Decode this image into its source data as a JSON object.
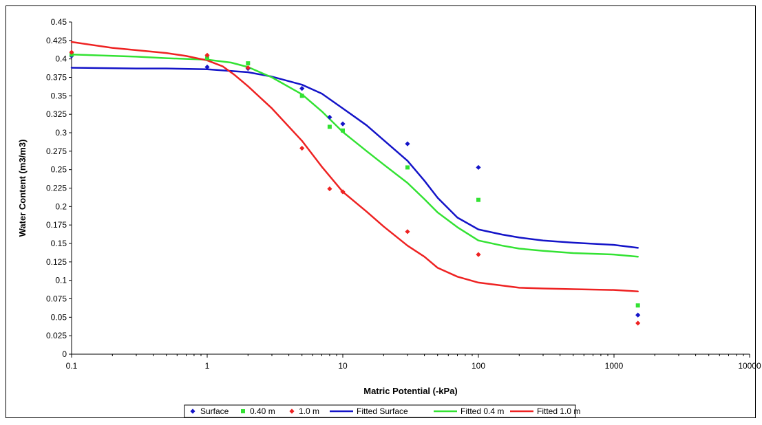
{
  "chart_data": {
    "type": "scatter",
    "title": "",
    "xlabel": "Matric Potential (-kPa)",
    "ylabel": "Water Content (m3/m3)",
    "xscale": "log",
    "xlim": [
      0.1,
      10000
    ],
    "ylim": [
      0,
      0.45
    ],
    "x_ticks": [
      0.1,
      1,
      10,
      100,
      1000,
      10000
    ],
    "x_tick_labels": [
      "0.1",
      "1",
      "10",
      "100",
      "1000",
      "10000"
    ],
    "y_ticks": [
      0,
      0.025,
      0.05,
      0.075,
      0.1,
      0.125,
      0.15,
      0.175,
      0.2,
      0.225,
      0.25,
      0.275,
      0.3,
      0.325,
      0.35,
      0.375,
      0.4,
      0.425,
      0.45
    ],
    "y_tick_labels": [
      "0",
      "0.025",
      "0.05",
      "0.075",
      "0.1",
      "0.125",
      "0.15",
      "0.175",
      "0.2",
      "0.225",
      "0.25",
      "0.275",
      "0.3",
      "0.325",
      "0.35",
      "0.375",
      "0.4",
      "0.425",
      "0.45"
    ],
    "grid": false,
    "legend_position": "bottom",
    "series": [
      {
        "name": "Surface",
        "kind": "points",
        "marker": "diamond",
        "color": "#1414c8",
        "x": [
          0.1,
          1,
          2,
          5,
          8,
          10,
          30,
          100,
          1500
        ],
        "y": [
          0.404,
          0.389,
          0.387,
          0.36,
          0.321,
          0.312,
          0.285,
          0.253,
          0.053
        ]
      },
      {
        "name": "0.40 m",
        "kind": "points",
        "marker": "square",
        "color": "#33e233",
        "x": [
          0.1,
          1,
          2,
          5,
          8,
          10,
          30,
          100,
          1500
        ],
        "y": [
          0.406,
          0.401,
          0.394,
          0.35,
          0.308,
          0.303,
          0.253,
          0.209,
          0.066
        ]
      },
      {
        "name": "1.0 m",
        "kind": "points",
        "marker": "diamond",
        "color": "#ee2222",
        "x": [
          0.1,
          1,
          2,
          5,
          8,
          10,
          30,
          100,
          1500
        ],
        "y": [
          0.409,
          0.405,
          0.388,
          0.279,
          0.224,
          0.22,
          0.166,
          0.135,
          0.042
        ]
      },
      {
        "name": "Fitted Surface",
        "kind": "line",
        "color": "#1414c8",
        "x": [
          0.1,
          0.3,
          0.5,
          1,
          2,
          3,
          5,
          7,
          10,
          15,
          20,
          30,
          40,
          50,
          70,
          100,
          150,
          200,
          300,
          500,
          1000,
          1500
        ],
        "y": [
          0.388,
          0.387,
          0.387,
          0.386,
          0.382,
          0.376,
          0.365,
          0.353,
          0.333,
          0.31,
          0.29,
          0.262,
          0.235,
          0.212,
          0.185,
          0.169,
          0.162,
          0.158,
          0.154,
          0.151,
          0.148,
          0.144
        ]
      },
      {
        "name": "Fitted 0.4 m",
        "kind": "line",
        "color": "#33e233",
        "x": [
          0.1,
          0.3,
          0.5,
          1,
          1.5,
          2,
          3,
          5,
          7,
          10,
          15,
          20,
          30,
          40,
          50,
          70,
          100,
          150,
          200,
          300,
          500,
          1000,
          1500
        ],
        "y": [
          0.406,
          0.403,
          0.401,
          0.399,
          0.395,
          0.389,
          0.375,
          0.352,
          0.329,
          0.301,
          0.275,
          0.257,
          0.232,
          0.21,
          0.192,
          0.172,
          0.154,
          0.147,
          0.143,
          0.14,
          0.137,
          0.135,
          0.132
        ]
      },
      {
        "name": "Fitted 1.0 m",
        "kind": "line",
        "color": "#ee2222",
        "x": [
          0.1,
          0.2,
          0.5,
          0.7,
          1,
          1.3,
          1.6,
          2,
          3,
          5,
          7,
          10,
          15,
          20,
          30,
          40,
          50,
          70,
          100,
          150,
          200,
          300,
          500,
          1000,
          1500
        ],
        "y": [
          0.423,
          0.415,
          0.408,
          0.404,
          0.398,
          0.39,
          0.378,
          0.363,
          0.333,
          0.289,
          0.254,
          0.22,
          0.193,
          0.173,
          0.147,
          0.132,
          0.117,
          0.105,
          0.097,
          0.093,
          0.09,
          0.089,
          0.088,
          0.087,
          0.085
        ]
      }
    ]
  }
}
